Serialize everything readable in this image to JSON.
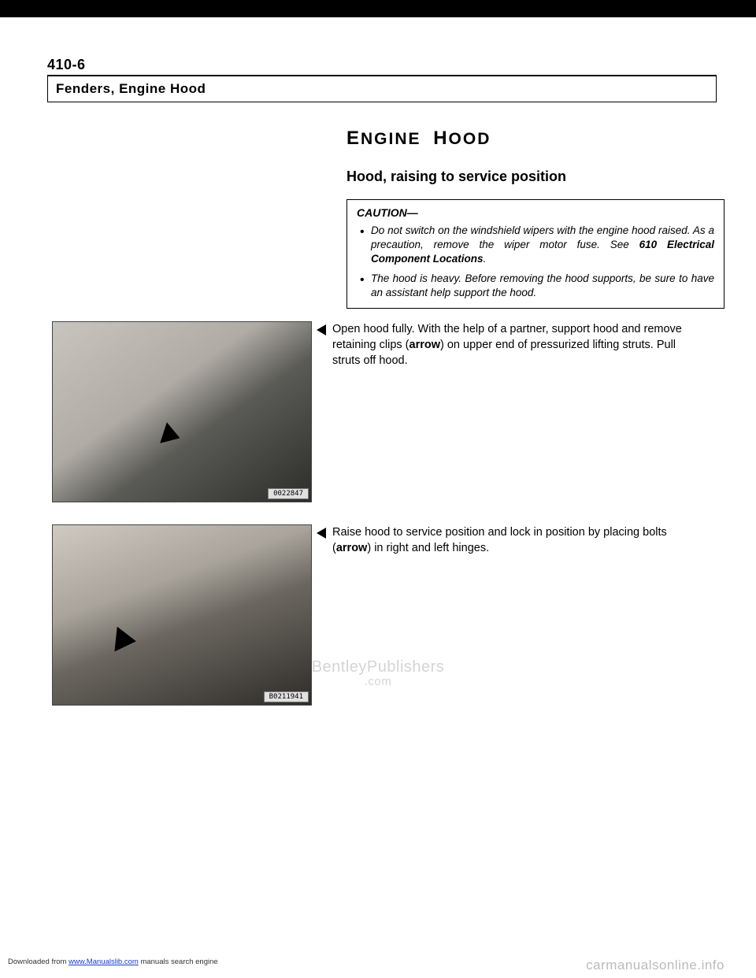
{
  "page_number": "410-6",
  "section_title": "Fenders, Engine Hood",
  "main_heading_prefix": "E",
  "main_heading_word1": "NGINE",
  "main_heading_prefix2": "H",
  "main_heading_word2": "OOD",
  "sub_heading": "Hood, raising to service position",
  "caution_label": "CAUTION—",
  "caution_items": [
    {
      "pre": "Do not switch on the windshield wipers with the engine hood raised. As a precaution, remove the wiper motor fuse. See ",
      "bold": "610 Electrical Component Locations",
      "post": "."
    },
    {
      "pre": "The hood is heavy. Before removing the hood supports, be sure to have an assistant help support the hood.",
      "bold": "",
      "post": ""
    }
  ],
  "step1": {
    "pre": "Open hood fully. With the help of a partner, support hood and remove retaining clips (",
    "bold": "arrow",
    "post": ") on upper end of pressurized lifting struts. Pull struts off hood."
  },
  "step2": {
    "pre": "Raise hood to service position and lock in position by placing bolts (",
    "bold": "arrow",
    "post": ") in right and left hinges."
  },
  "fig1_label": "0022847",
  "fig2_label": "B0211941",
  "footer_prefix": "Downloaded from ",
  "footer_link": "www.Manualslib.com",
  "footer_suffix": " manuals search engine",
  "footer_right": "carmanualsonline.info",
  "watermark_l1": "BentleyPublishers",
  "watermark_l2": ".com"
}
